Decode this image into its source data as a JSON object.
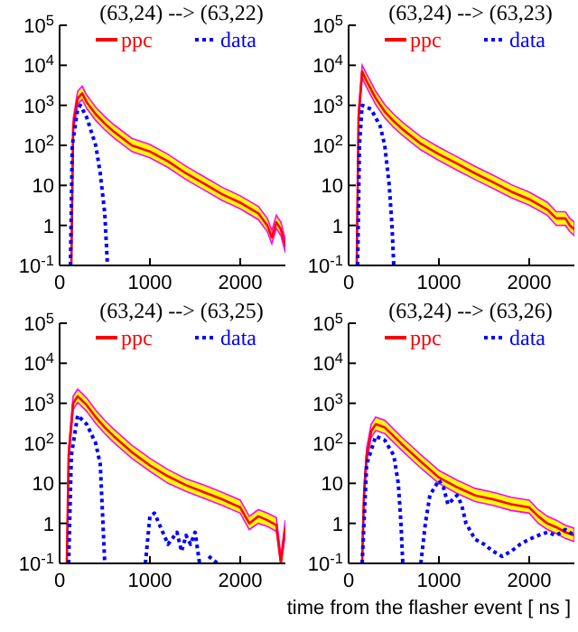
{
  "chart_data": [
    {
      "type": "line",
      "title": "(63,24) --> (63,22)",
      "xlim": [
        0,
        2500
      ],
      "xticks": [
        0,
        1000,
        2000
      ],
      "ylim": [
        0.1,
        100000
      ],
      "yticks": [
        {
          "value": 0.1,
          "label": "10$^{-1}$"
        },
        {
          "value": 1,
          "label": "1"
        },
        {
          "value": 10,
          "label": "10"
        },
        {
          "value": 100,
          "label": "10$^{2}$"
        },
        {
          "value": 1000,
          "label": "10$^{3}$"
        },
        {
          "value": 10000,
          "label": "10$^{4}$"
        },
        {
          "value": 100000,
          "label": "10$^{5}$"
        }
      ],
      "log": true,
      "legend": "top",
      "series": [
        {
          "name": "ppc",
          "color": "#ff0000",
          "line_style": "solid",
          "x": [
            130,
            150,
            200,
            250,
            300,
            400,
            500,
            600,
            800,
            1000,
            1200,
            1400,
            1600,
            1800,
            2000,
            2200,
            2300,
            2350,
            2400,
            2450,
            2500
          ],
          "values": [
            0.1,
            300,
            1500,
            2000,
            1200,
            600,
            350,
            220,
            100,
            70,
            40,
            20,
            11,
            6,
            3.7,
            2,
            1,
            0.5,
            1.2,
            0.8,
            0.3
          ],
          "upper": [
            0.15,
            450,
            2250,
            3000,
            1800,
            900,
            525,
            330,
            150,
            105,
            60,
            30,
            16.5,
            9,
            5.5,
            3,
            1.5,
            0.75,
            1.8,
            1.2,
            0.45
          ],
          "lower": [
            0.1,
            210,
            1050,
            1400,
            840,
            420,
            245,
            154,
            70,
            49,
            28,
            14,
            7.7,
            4.2,
            2.6,
            1.4,
            0.7,
            0.35,
            0.84,
            0.56,
            0.21
          ]
        },
        {
          "name": "data",
          "color": "#0000ff",
          "line_style": "dotted",
          "x": [
            120,
            140,
            200,
            230,
            300,
            400,
            450,
            500,
            530
          ],
          "values": [
            0.1,
            100,
            800,
            1000,
            500,
            100,
            20,
            2,
            0.1
          ]
        }
      ]
    },
    {
      "type": "line",
      "title": "(63,24) --> (63,23)",
      "xlim": [
        0,
        2500
      ],
      "xticks": [
        0,
        1000,
        2000
      ],
      "ylim": [
        0.1,
        100000
      ],
      "yticks": [
        {
          "value": 0.1,
          "label": "10$^{-1}$"
        },
        {
          "value": 1,
          "label": "1"
        },
        {
          "value": 10,
          "label": "10"
        },
        {
          "value": 100,
          "label": "10$^{2}$"
        },
        {
          "value": 1000,
          "label": "10$^{3}$"
        },
        {
          "value": 10000,
          "label": "10$^{4}$"
        },
        {
          "value": 100000,
          "label": "10$^{5}$"
        }
      ],
      "log": true,
      "legend": "top",
      "series": [
        {
          "name": "ppc",
          "color": "#ff0000",
          "line_style": "solid",
          "x": [
            90,
            110,
            150,
            200,
            300,
            400,
            500,
            600,
            800,
            1000,
            1200,
            1400,
            1600,
            1800,
            2000,
            2200,
            2300,
            2400,
            2450,
            2500
          ],
          "values": [
            0.1,
            500,
            7000,
            4000,
            1500,
            700,
            400,
            250,
            110,
            60,
            35,
            20,
            12,
            7,
            4.5,
            2.5,
            1.5,
            1.5,
            1,
            0.8
          ],
          "upper": [
            0.15,
            750,
            10000,
            6000,
            2250,
            1050,
            600,
            375,
            165,
            90,
            52,
            30,
            18,
            10.5,
            6.8,
            3.8,
            2.2,
            2.2,
            1.5,
            1.2
          ],
          "lower": [
            0.1,
            350,
            4900,
            2800,
            1050,
            490,
            280,
            175,
            77,
            42,
            24,
            14,
            8.4,
            4.9,
            3.2,
            1.8,
            1,
            1,
            0.7,
            0.56
          ]
        },
        {
          "name": "data",
          "color": "#0000ff",
          "line_style": "dotted",
          "x": [
            100,
            120,
            150,
            250,
            350,
            400,
            450,
            480,
            500
          ],
          "values": [
            0.1,
            100,
            1000,
            800,
            300,
            100,
            10,
            1,
            0.1
          ]
        }
      ]
    },
    {
      "type": "line",
      "title": "(63,24) --> (63,25)",
      "xlim": [
        0,
        2500
      ],
      "xticks": [
        0,
        1000,
        2000
      ],
      "ylim": [
        0.1,
        100000
      ],
      "yticks": [
        {
          "value": 0.1,
          "label": "10$^{-1}$"
        },
        {
          "value": 1,
          "label": "1"
        },
        {
          "value": 10,
          "label": "10"
        },
        {
          "value": 100,
          "label": "10$^{2}$"
        },
        {
          "value": 1000,
          "label": "10$^{3}$"
        },
        {
          "value": 10000,
          "label": "10$^{4}$"
        },
        {
          "value": 100000,
          "label": "10$^{5}$"
        }
      ],
      "log": true,
      "legend": "top",
      "series": [
        {
          "name": "ppc",
          "color": "#ff0000",
          "line_style": "solid",
          "x": [
            80,
            100,
            150,
            200,
            300,
            400,
            500,
            600,
            800,
            1000,
            1200,
            1400,
            1600,
            1800,
            2000,
            2100,
            2200,
            2300,
            2400,
            2450,
            2500
          ],
          "values": [
            0.1,
            50,
            1000,
            1500,
            900,
            450,
            250,
            150,
            60,
            28,
            15,
            9,
            6,
            4,
            2.5,
            1,
            1.5,
            1.2,
            0.9,
            0.1,
            0.8
          ],
          "upper": [
            0.15,
            75,
            1500,
            2250,
            1350,
            675,
            375,
            225,
            90,
            42,
            22,
            13,
            9,
            6,
            3.8,
            1.5,
            2.2,
            1.8,
            1.4,
            0.15,
            1.2
          ],
          "lower": [
            0.1,
            35,
            700,
            1050,
            630,
            315,
            175,
            105,
            42,
            20,
            10,
            6.3,
            4.2,
            2.8,
            1.8,
            0.7,
            1,
            0.84,
            0.63,
            0.1,
            0.56
          ]
        },
        {
          "name": "data",
          "color": "#0000ff",
          "line_style": "dotted",
          "x": [
            100,
            130,
            200,
            300,
            400,
            450,
            480,
            500,
            520,
            950,
            1000,
            1050,
            1100,
            1200,
            1300,
            1350,
            1400,
            1450,
            1500,
            1550,
            1600,
            1650,
            1750
          ],
          "values": [
            0.1,
            50,
            500,
            300,
            100,
            30,
            1,
            0.1,
            null,
            0.1,
            1.5,
            1.8,
            1,
            0.3,
            0.6,
            0.2,
            0.5,
            0.3,
            0.6,
            0.1,
            null,
            0.15,
            0.1
          ]
        }
      ]
    },
    {
      "type": "line",
      "title": "(63,24) --> (63,26)",
      "xlabel": "time from the flasher event [ ns ]",
      "xlim": [
        0,
        2500
      ],
      "xticks": [
        0,
        1000,
        2000
      ],
      "ylim": [
        0.1,
        100000
      ],
      "yticks": [
        {
          "value": 0.1,
          "label": "10$^{-1}$"
        },
        {
          "value": 1,
          "label": "1"
        },
        {
          "value": 10,
          "label": "10"
        },
        {
          "value": 100,
          "label": "10$^{2}$"
        },
        {
          "value": 1000,
          "label": "10$^{3}$"
        },
        {
          "value": 10000,
          "label": "10$^{4}$"
        },
        {
          "value": 100000,
          "label": "10$^{5}$"
        }
      ],
      "log": true,
      "legend": "top",
      "series": [
        {
          "name": "ppc",
          "color": "#ff0000",
          "line_style": "solid",
          "x": [
            150,
            170,
            200,
            250,
            300,
            400,
            500,
            600,
            800,
            1000,
            1200,
            1400,
            1600,
            1800,
            2000,
            2100,
            2200,
            2300,
            2400,
            2500
          ],
          "values": [
            0.1,
            5,
            50,
            200,
            300,
            250,
            150,
            90,
            35,
            14,
            8,
            5,
            4,
            3,
            2.5,
            1.5,
            1,
            0.8,
            0.6,
            0.5
          ],
          "upper": [
            0.15,
            7.5,
            75,
            300,
            450,
            375,
            225,
            135,
            52,
            21,
            12,
            7.5,
            6,
            4.5,
            3.8,
            2.2,
            1.5,
            1.2,
            0.9,
            0.75
          ],
          "lower": [
            0.1,
            3.5,
            35,
            140,
            210,
            175,
            105,
            63,
            24,
            10,
            5.6,
            3.5,
            2.8,
            2.1,
            1.8,
            1,
            0.7,
            0.56,
            0.42,
            0.35
          ]
        },
        {
          "name": "data",
          "color": "#0000ff",
          "line_style": "dotted",
          "x": [
            150,
            200,
            300,
            400,
            500,
            550,
            580,
            600,
            700,
            800,
            850,
            900,
            1000,
            1050,
            1100,
            1200,
            1250,
            1300,
            1400,
            1500,
            1600,
            1700,
            1800,
            1900,
            2000,
            2100,
            2200,
            2300,
            2400,
            2500
          ],
          "values": [
            0.1,
            30,
            150,
            120,
            50,
            10,
            1,
            0.1,
            null,
            0.1,
            1,
            5,
            12,
            8,
            3,
            5,
            3,
            1,
            0.4,
            0.3,
            0.2,
            0.15,
            0.2,
            0.3,
            0.4,
            0.5,
            0.6,
            0.5,
            0.7,
            0.5
          ]
        }
      ]
    }
  ]
}
